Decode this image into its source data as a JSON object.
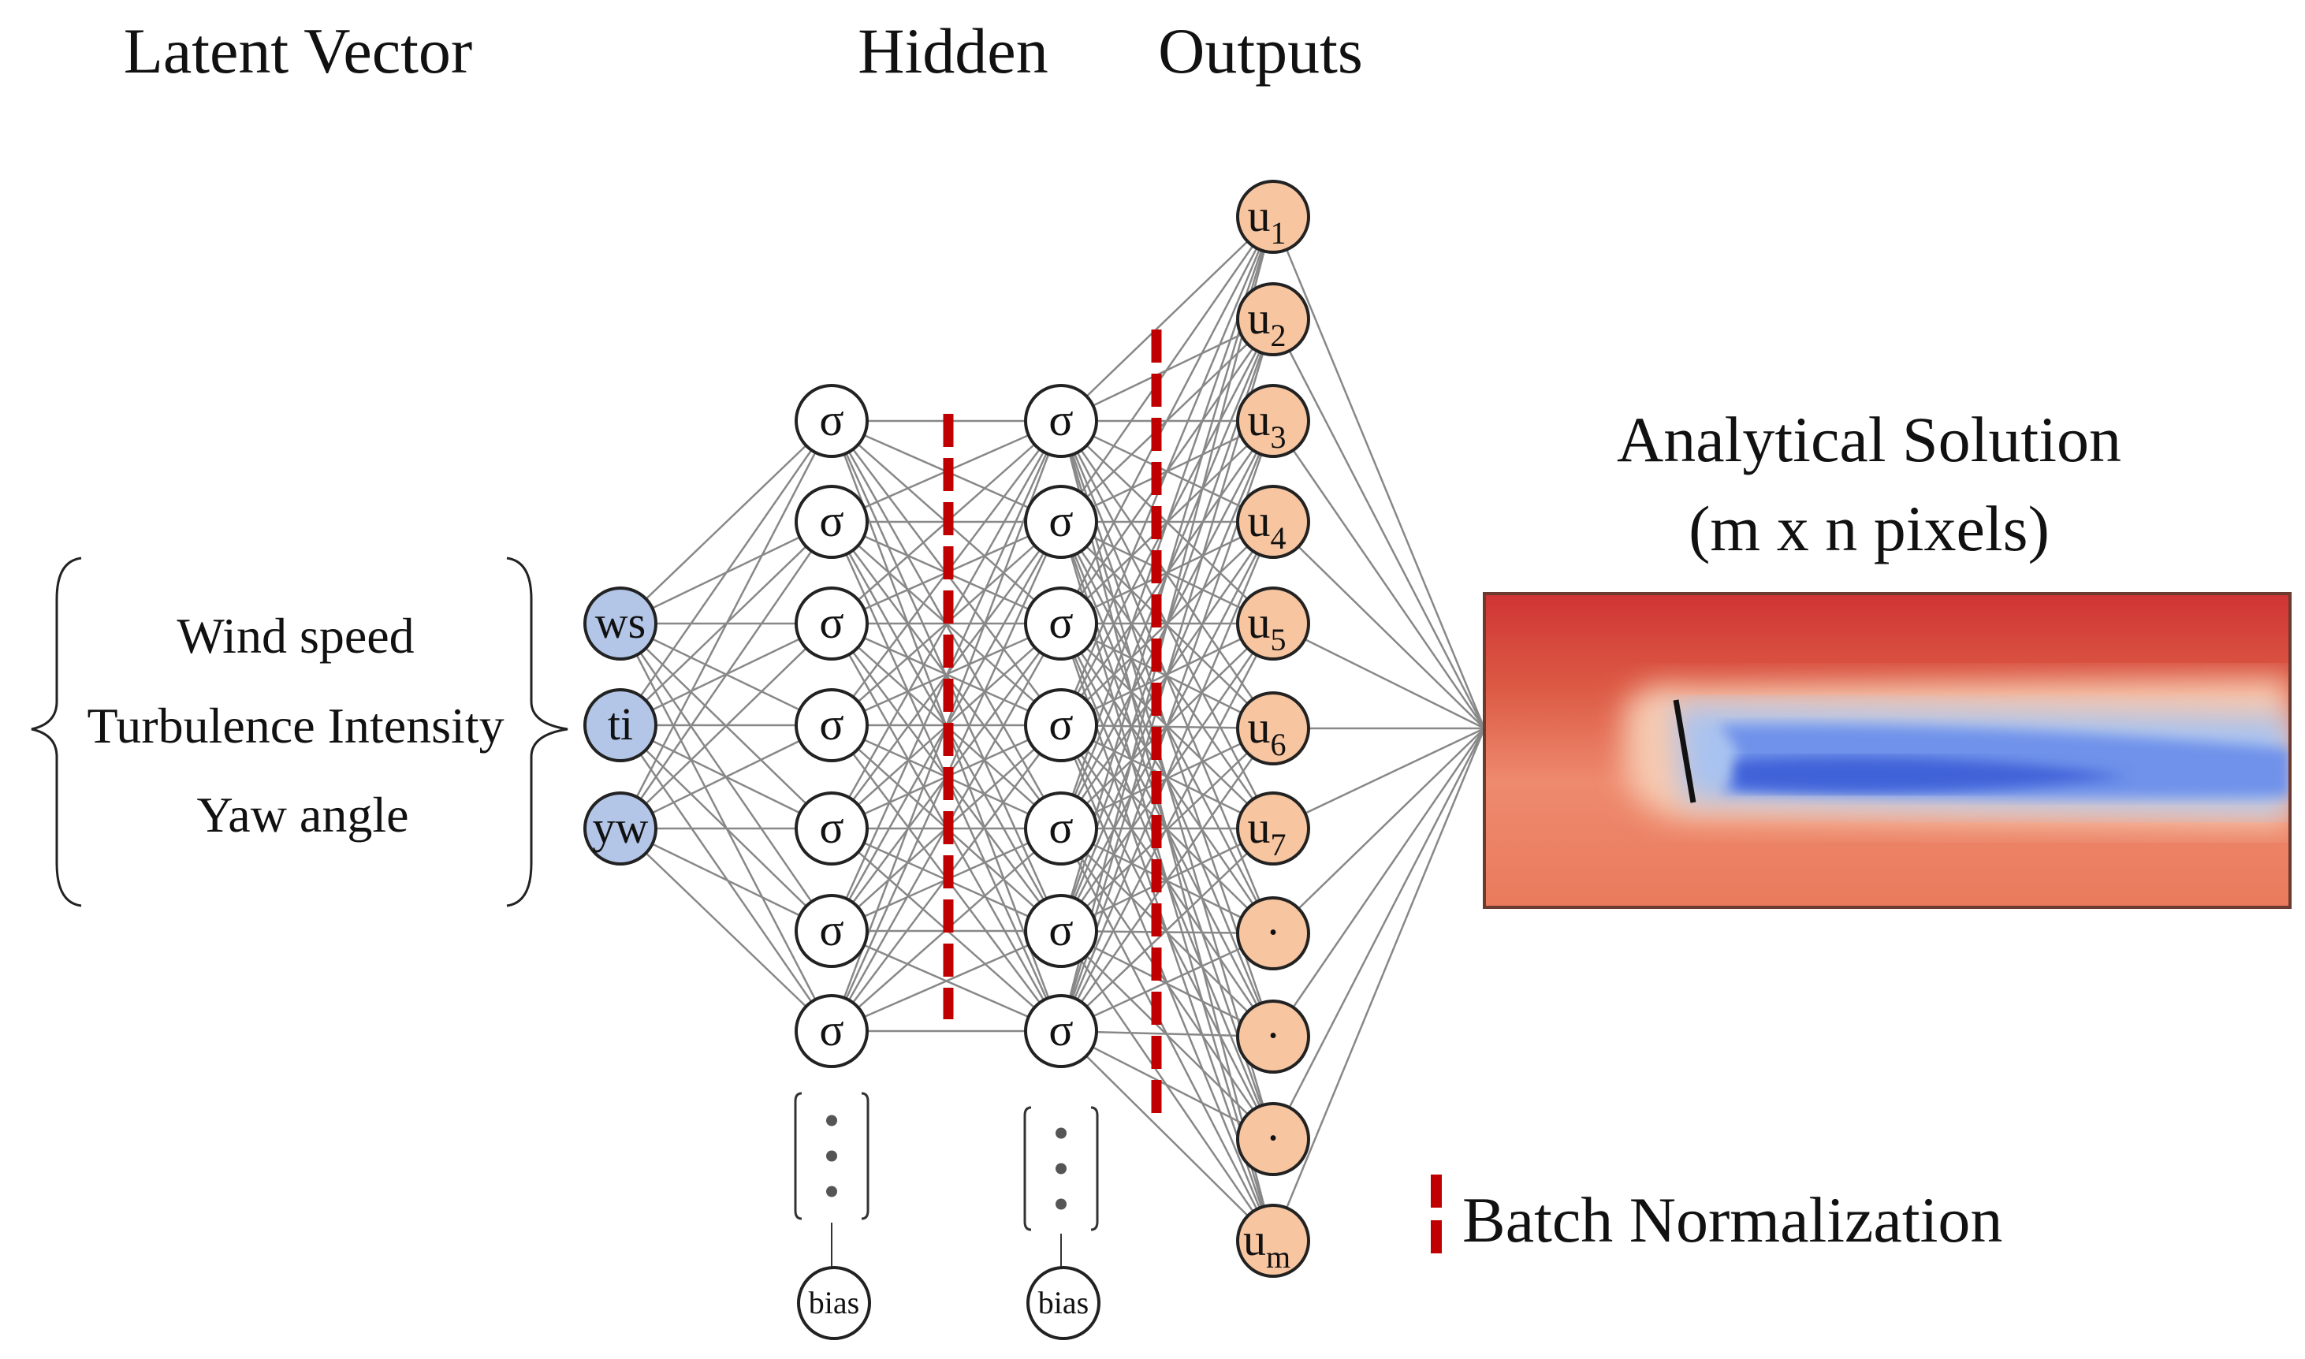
{
  "headings": {
    "latent": "Latent Vector",
    "hidden": "Hidden",
    "outputs": "Outputs",
    "analytical_line1": "Analytical Solution",
    "analytical_line2": "(m x n pixels)"
  },
  "features": [
    "Wind speed",
    "Turbulence Intensity",
    "Yaw angle"
  ],
  "input_nodes": [
    "ws",
    "ti",
    "yw"
  ],
  "hidden_layers": [
    {
      "nodes": [
        "σ",
        "σ",
        "σ",
        "σ",
        "σ",
        "σ",
        "σ"
      ],
      "bias": "bias"
    },
    {
      "nodes": [
        "σ",
        "σ",
        "σ",
        "σ",
        "σ",
        "σ",
        "σ"
      ],
      "bias": "bias"
    }
  ],
  "output_nodes": [
    {
      "base": "u",
      "sub": "1"
    },
    {
      "base": "u",
      "sub": "2"
    },
    {
      "base": "u",
      "sub": "3"
    },
    {
      "base": "u",
      "sub": "4"
    },
    {
      "base": "u",
      "sub": "5"
    },
    {
      "base": "u",
      "sub": "6"
    },
    {
      "base": "u",
      "sub": "7"
    },
    {
      "base": "·",
      "sub": ""
    },
    {
      "base": "·",
      "sub": ""
    },
    {
      "base": "·",
      "sub": ""
    },
    {
      "base": "u",
      "sub": "m"
    }
  ],
  "legend": {
    "batch_norm": "Batch Normalization"
  },
  "colors": {
    "input_fill": "#b3c6e8",
    "output_fill": "#f7c5a0",
    "batch_norm": "#c00000",
    "edge": "#888888",
    "field_high": "#d23a36",
    "field_low": "#3f62d8"
  }
}
